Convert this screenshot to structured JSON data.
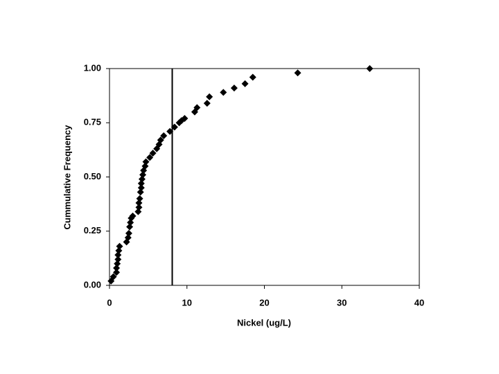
{
  "chart_data": {
    "type": "scatter",
    "x_label": "Nickel (ug/L)",
    "y_label": "Cummulative Frequency",
    "x": [
      0.2,
      0.5,
      0.9,
      0.9,
      1.0,
      1.1,
      1.1,
      1.2,
      1.3,
      2.2,
      2.4,
      2.5,
      2.6,
      2.7,
      2.8,
      3.0,
      3.7,
      3.8,
      3.8,
      3.9,
      4.0,
      4.1,
      4.1,
      4.2,
      4.3,
      4.4,
      4.6,
      4.7,
      5.2,
      5.6,
      6.1,
      6.4,
      6.6,
      7.0,
      7.8,
      8.4,
      9.0,
      9.3,
      9.7,
      11.0,
      11.3,
      12.6,
      12.9,
      14.7,
      16.1,
      17.5,
      18.5,
      24.3,
      33.6
    ],
    "values": [
      0.02,
      0.04,
      0.06,
      0.08,
      0.1,
      0.12,
      0.14,
      0.16,
      0.18,
      0.2,
      0.22,
      0.24,
      0.27,
      0.29,
      0.31,
      0.32,
      0.34,
      0.36,
      0.38,
      0.4,
      0.43,
      0.45,
      0.47,
      0.49,
      0.51,
      0.53,
      0.55,
      0.57,
      0.59,
      0.61,
      0.63,
      0.65,
      0.67,
      0.69,
      0.71,
      0.73,
      0.75,
      0.76,
      0.77,
      0.8,
      0.82,
      0.84,
      0.87,
      0.89,
      0.91,
      0.93,
      0.96,
      0.98,
      1.0
    ],
    "color": "#000000",
    "vline": 8.1,
    "xlim": [
      0,
      40
    ],
    "xticks": [
      0,
      10,
      20,
      30,
      40
    ],
    "ylim": [
      0,
      1
    ],
    "yticks": [
      {
        "value": 0,
        "label": "0.00"
      },
      {
        "value": 0.25,
        "label": "0.25"
      },
      {
        "value": 0.5,
        "label": "0.50"
      },
      {
        "value": 0.75,
        "label": "0.75"
      },
      {
        "value": 1,
        "label": "1.00"
      }
    ],
    "grid": false
  }
}
